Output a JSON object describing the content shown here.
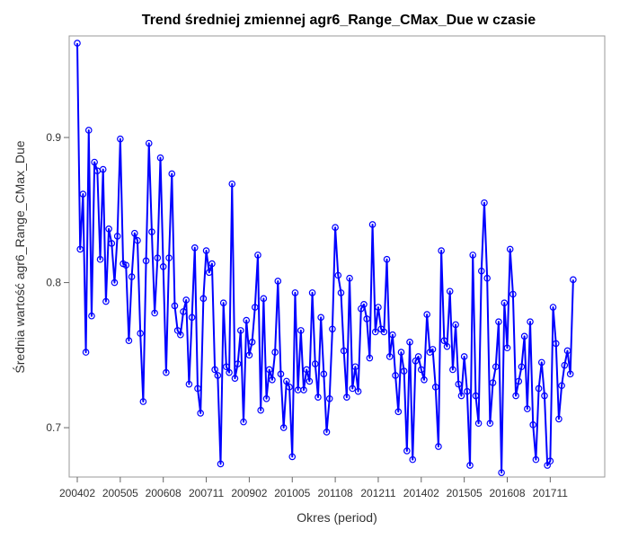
{
  "chart_data": {
    "type": "line",
    "title": "Trend średniej zmiennej agr6_Range_CMax_Due w czasie",
    "xlabel": "Okres (period)",
    "ylabel": "Średnia wartość agr6_Range_CMax_Due",
    "ylim": [
      0.666,
      0.97
    ],
    "y_ticks": [
      "0.7",
      "0.8",
      "0.9"
    ],
    "x_ticks": [
      "200402",
      "200505",
      "200608",
      "200711",
      "200902",
      "201005",
      "201108",
      "201211",
      "201402",
      "201505",
      "201608",
      "201711"
    ],
    "series": [
      {
        "color": "#0000ff",
        "marker": "circle",
        "values": [
          0.965,
          0.823,
          0.861,
          0.752,
          0.905,
          0.777,
          0.883,
          0.877,
          0.816,
          0.878,
          0.787,
          0.837,
          0.827,
          0.8,
          0.832,
          0.899,
          0.813,
          0.812,
          0.76,
          0.804,
          0.834,
          0.829,
          0.765,
          0.718,
          0.815,
          0.896,
          0.835,
          0.779,
          0.817,
          0.886,
          0.811,
          0.738,
          0.817,
          0.875,
          0.784,
          0.767,
          0.764,
          0.78,
          0.788,
          0.73,
          0.776,
          0.824,
          0.727,
          0.71,
          0.789,
          0.822,
          0.807,
          0.813,
          0.74,
          0.736,
          0.675,
          0.786,
          0.742,
          0.738,
          0.868,
          0.734,
          0.744,
          0.767,
          0.704,
          0.774,
          0.75,
          0.759,
          0.783,
          0.819,
          0.712,
          0.789,
          0.72,
          0.74,
          0.733,
          0.752,
          0.801,
          0.737,
          0.7,
          0.732,
          0.728,
          0.68,
          0.793,
          0.726,
          0.767,
          0.726,
          0.74,
          0.732,
          0.793,
          0.744,
          0.721,
          0.776,
          0.737,
          0.697,
          0.72,
          0.768,
          0.838,
          0.805,
          0.793,
          0.753,
          0.721,
          0.803,
          0.727,
          0.742,
          0.725,
          0.782,
          0.785,
          0.775,
          0.748,
          0.84,
          0.766,
          0.783,
          0.768,
          0.766,
          0.816,
          0.749,
          0.764,
          0.736,
          0.711,
          0.752,
          0.739,
          0.684,
          0.759,
          0.678,
          0.746,
          0.749,
          0.74,
          0.733,
          0.778,
          0.752,
          0.754,
          0.728,
          0.687,
          0.822,
          0.76,
          0.756,
          0.794,
          0.74,
          0.771,
          0.73,
          0.722,
          0.749,
          0.725,
          0.674,
          0.819,
          0.722,
          0.703,
          0.808,
          0.855,
          0.803,
          0.703,
          0.731,
          0.742,
          0.773,
          0.669,
          0.786,
          0.755,
          0.823,
          0.792,
          0.722,
          0.732,
          0.742,
          0.763,
          0.713,
          0.773,
          0.702,
          0.678,
          0.727,
          0.745,
          0.722,
          0.674,
          0.677,
          0.783,
          0.758,
          0.706,
          0.729,
          0.743,
          0.753,
          0.737,
          0.802
        ]
      }
    ]
  }
}
